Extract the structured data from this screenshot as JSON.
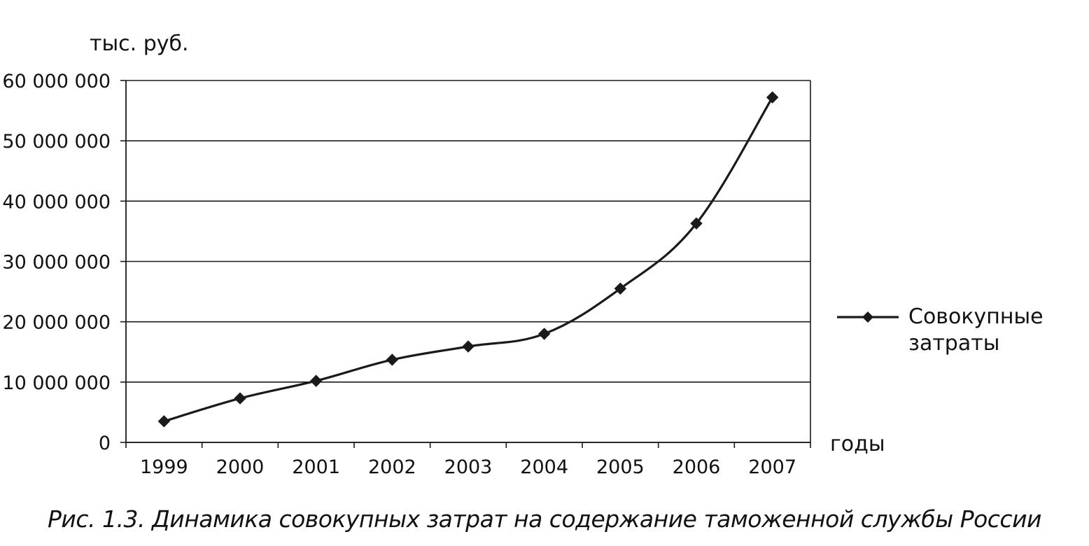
{
  "chart_data": {
    "type": "line",
    "title": "",
    "ylabel": "тыс. руб.",
    "xlabel": "годы",
    "categories": [
      "1999",
      "2000",
      "2001",
      "2002",
      "2003",
      "2004",
      "2005",
      "2006",
      "2007"
    ],
    "series": [
      {
        "name": "Совокупные\nзатраты",
        "values": [
          3500000,
          7300000,
          10200000,
          13700000,
          15900000,
          18000000,
          25500000,
          36300000,
          57200000
        ],
        "marker": "diamond",
        "color": "#1a1a1a"
      }
    ],
    "ylim": [
      0,
      60000000
    ],
    "yticks": [
      "0",
      "10 000 000",
      "20 000 000",
      "30 000 000",
      "40 000 000",
      "50 000 000",
      "60 000 000"
    ],
    "grid": true,
    "legend": "right"
  },
  "caption": "Рис. 1.3. Динамика совокупных затрат на содержание таможенной службы России"
}
